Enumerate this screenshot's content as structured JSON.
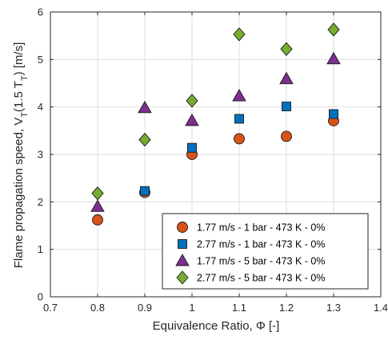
{
  "chart_data": {
    "type": "scatter",
    "xlabel": "Equivalence Ratio, Φ [-]",
    "ylabel": "Flame propagation speed, V_T(1.5 T_T) [m/s]",
    "xlim": [
      0.7,
      1.4
    ],
    "ylim": [
      0,
      6
    ],
    "x_ticks": [
      "0.7",
      "0.8",
      "0.9",
      "1",
      "1.1",
      "1.2",
      "1.3",
      "1.4"
    ],
    "y_ticks": [
      "0",
      "1",
      "2",
      "3",
      "4",
      "5",
      "6"
    ],
    "grid": true,
    "legend_position": "bottom-right",
    "series": [
      {
        "name": "1.77 m/s - 1 bar - 473 K - 0%",
        "marker": "circle",
        "color": "#D95319",
        "x": [
          0.8,
          0.9,
          1.0,
          1.1,
          1.2,
          1.3
        ],
        "y": [
          1.62,
          2.2,
          3.0,
          3.33,
          3.38,
          3.71
        ]
      },
      {
        "name": "2.77 m/s - 1 bar - 473 K - 0%",
        "marker": "square",
        "color": "#0072BD",
        "x": [
          0.9,
          1.0,
          1.1,
          1.2,
          1.3
        ],
        "y": [
          2.23,
          3.14,
          3.75,
          4.01,
          3.85
        ]
      },
      {
        "name": "1.77 m/s - 5 bar - 473 K - 0%",
        "marker": "triangle",
        "color": "#7E2F8E",
        "x": [
          0.8,
          0.9,
          1.0,
          1.1,
          1.2,
          1.3
        ],
        "y": [
          1.9,
          3.98,
          3.71,
          4.23,
          4.59,
          5.01
        ]
      },
      {
        "name": "2.77 m/s - 5 bar - 473 K - 0%",
        "marker": "diamond",
        "color": "#77AC30",
        "x": [
          0.8,
          0.9,
          1.0,
          1.1,
          1.2,
          1.3
        ],
        "y": [
          2.18,
          3.31,
          4.13,
          5.53,
          5.22,
          5.63
        ]
      }
    ]
  }
}
